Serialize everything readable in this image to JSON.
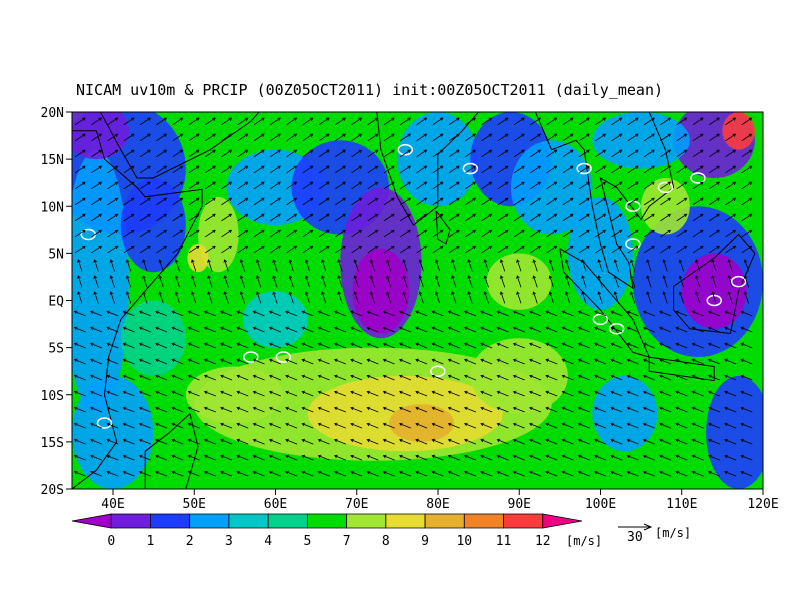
{
  "title": "NICAM uv10m & PRCIP (00Z05OCT2011) init:00Z05OCT2011 (daily_mean)",
  "lat_labels": [
    "20N",
    "15N",
    "10N",
    "5N",
    "EQ",
    "5S",
    "10S",
    "15S",
    "20S"
  ],
  "lon_labels": [
    "40E",
    "50E",
    "60E",
    "70E",
    "80E",
    "90E",
    "100E",
    "110E",
    "120E"
  ],
  "colorbar": {
    "levels": [
      0,
      1,
      2,
      3,
      4,
      5,
      7,
      8,
      9,
      10,
      11,
      12
    ],
    "colors": [
      "#a000c8",
      "#6e1edc",
      "#1e3cff",
      "#00a0ff",
      "#00c8c8",
      "#00d28c",
      "#00dc00",
      "#a0e632",
      "#e6dc32",
      "#e6af2d",
      "#f08228",
      "#fa3c3c",
      "#f00082"
    ],
    "unit": "[m/s]"
  },
  "vector_ref": {
    "value": 30,
    "unit": "[m/s]"
  }
}
